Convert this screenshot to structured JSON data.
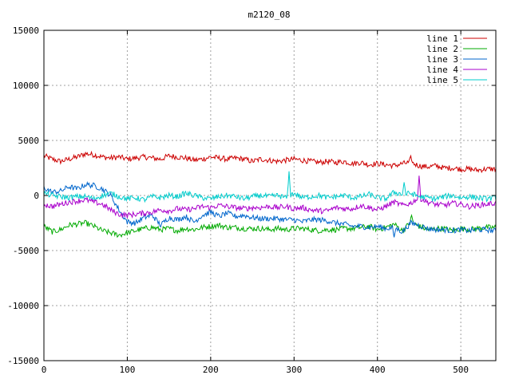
{
  "chart_data": {
    "type": "line",
    "title": "m2120_08",
    "xlabel": "",
    "ylabel": "",
    "xlim": [
      0,
      542
    ],
    "ylim": [
      -15000,
      15000
    ],
    "xticks": [
      0,
      100,
      200,
      300,
      400,
      500
    ],
    "yticks": [
      -15000,
      -10000,
      -5000,
      0,
      5000,
      10000,
      15000
    ],
    "grid": true,
    "legend_position": "top-right",
    "x_step": 10,
    "series": [
      {
        "name": "line 1",
        "color": "#cc0000",
        "values": [
          3600,
          3300,
          3100,
          3300,
          3500,
          3800,
          3700,
          3500,
          3400,
          3500,
          3300,
          3400,
          3500,
          3400,
          3300,
          3600,
          3500,
          3400,
          3200,
          3300,
          3500,
          3400,
          3300,
          3400,
          3300,
          3100,
          3300,
          3200,
          3100,
          3200,
          3300,
          3200,
          3100,
          3000,
          3100,
          3000,
          3100,
          2900,
          3000,
          2800,
          2900,
          2800,
          2700,
          2900,
          3000,
          2700,
          2600,
          2700,
          2500,
          2500,
          2400,
          2400,
          2300,
          2400,
          2400
        ]
      },
      {
        "name": "line 2",
        "color": "#00aa00",
        "values": [
          -2800,
          -3300,
          -3100,
          -2700,
          -2600,
          -2500,
          -2800,
          -3200,
          -3400,
          -3600,
          -3400,
          -3200,
          -3000,
          -2900,
          -3100,
          -3000,
          -3200,
          -3000,
          -3100,
          -2900,
          -2800,
          -2700,
          -2900,
          -2900,
          -3000,
          -3000,
          -3000,
          -3100,
          -3000,
          -3100,
          -3000,
          -3000,
          -3100,
          -3200,
          -3100,
          -3100,
          -3000,
          -3000,
          -2900,
          -2800,
          -3100,
          -2900,
          -2600,
          -3200,
          -2400,
          -2800,
          -3100,
          -3000,
          -3000,
          -3200,
          -3000,
          -3100,
          -3000,
          -2900,
          -2900
        ]
      },
      {
        "name": "line 3",
        "color": "#0066cc",
        "values": [
          700,
          300,
          400,
          800,
          600,
          1000,
          900,
          600,
          0,
          -1300,
          -2400,
          -2500,
          -2000,
          -1800,
          -2700,
          -2000,
          -2200,
          -1900,
          -2400,
          -1800,
          -1500,
          -1900,
          -1600,
          -1900,
          -1800,
          -2000,
          -2100,
          -2100,
          -2100,
          -2200,
          -2200,
          -2400,
          -2200,
          -2200,
          -2300,
          -2500,
          -2600,
          -2800,
          -2800,
          -2900,
          -2800,
          -3000,
          -2900,
          -3300,
          -2500,
          -2700,
          -3000,
          -3100,
          -3100,
          -3200,
          -3100,
          -3200,
          -3100,
          -3100,
          -3200
        ]
      },
      {
        "name": "line 4",
        "color": "#aa00cc",
        "values": [
          -800,
          -1000,
          -800,
          -600,
          -500,
          -400,
          -600,
          -800,
          -1300,
          -1700,
          -1800,
          -1700,
          -1600,
          -1500,
          -1300,
          -1400,
          -1200,
          -1300,
          -1200,
          -1000,
          -1100,
          -900,
          -1000,
          -1100,
          -1200,
          -1100,
          -1100,
          -1000,
          -1100,
          -1000,
          -1200,
          -1100,
          -1300,
          -1400,
          -1400,
          -1100,
          -1200,
          -1200,
          -900,
          -1100,
          -1300,
          -1000,
          -600,
          -900,
          -700,
          -200,
          -600,
          -800,
          -900,
          -700,
          -800,
          -1000,
          -900,
          -800,
          -700
        ]
      },
      {
        "name": "line 5",
        "color": "#00cccc",
        "values": [
          200,
          0,
          -100,
          -200,
          -100,
          -100,
          -300,
          0,
          200,
          -100,
          -300,
          -200,
          -400,
          -100,
          -200,
          0,
          -100,
          200,
          0,
          -200,
          -300,
          -100,
          0,
          -100,
          -300,
          -100,
          0,
          -100,
          0,
          -200,
          200,
          -200,
          -100,
          0,
          -200,
          -100,
          0,
          -200,
          -100,
          100,
          -200,
          -300,
          300,
          100,
          200,
          -100,
          -200,
          -300,
          -100,
          0,
          -200,
          -100,
          -200,
          -300,
          -200
        ]
      }
    ],
    "spikes": [
      {
        "series": "line 5",
        "x": 294,
        "y": 2200
      },
      {
        "series": "line 5",
        "x": 432,
        "y": 1200
      },
      {
        "series": "line 4",
        "x": 450,
        "y": 1800
      },
      {
        "series": "line 1",
        "x": 440,
        "y": 3600
      },
      {
        "series": "line 3",
        "x": 420,
        "y": -3800
      },
      {
        "series": "line 2",
        "x": 441,
        "y": -1800
      }
    ]
  }
}
